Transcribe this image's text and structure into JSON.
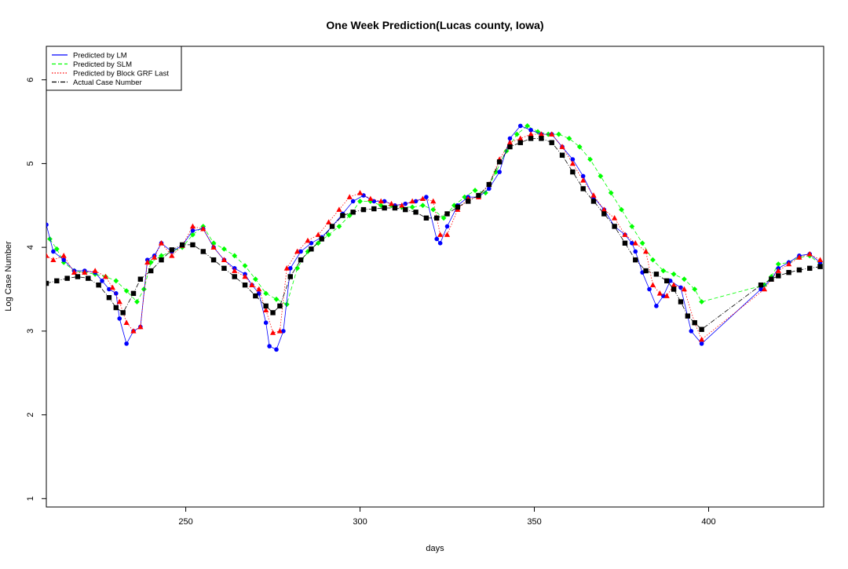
{
  "chart_data": {
    "type": "scatter",
    "title": "One Week Prediction(Lucas county, Iowa)",
    "xlabel": "days",
    "ylabel": "Log Case Number",
    "xlim": [
      210,
      433
    ],
    "ylim": [
      0.9,
      6.4
    ],
    "x_ticks": [
      250,
      300,
      350,
      400
    ],
    "y_ticks": [
      1,
      2,
      3,
      4,
      5,
      6
    ],
    "grid": false,
    "legend_position": "top-left",
    "legend": [
      {
        "label": "Predicted by LM",
        "color": "#0000ff",
        "line": "solid"
      },
      {
        "label": "Predicted by SLM",
        "color": "#00ff00",
        "line": "dashed"
      },
      {
        "label": "Predicted by Block GRF Last",
        "color": "#ff0000",
        "line": "dotted"
      },
      {
        "label": "Actual Case Number",
        "color": "#000000",
        "line": "dashdot"
      }
    ],
    "actual": {
      "name": "Actual Case Number",
      "color": "#000000",
      "marker": "square",
      "x": [
        210,
        213,
        216,
        219,
        222,
        225,
        228,
        230,
        232,
        235,
        237,
        240,
        243,
        246,
        249,
        252,
        255,
        258,
        261,
        264,
        267,
        270,
        273,
        275,
        277,
        280,
        283,
        286,
        289,
        292,
        295,
        298,
        301,
        304,
        307,
        310,
        313,
        316,
        319,
        322,
        325,
        328,
        331,
        334,
        337,
        340,
        343,
        346,
        349,
        352,
        355,
        358,
        361,
        364,
        367,
        370,
        373,
        376,
        379,
        382,
        385,
        388,
        390,
        392,
        394,
        396,
        398,
        415,
        418,
        420,
        423,
        426,
        429,
        432
      ],
      "y": [
        3.57,
        3.6,
        3.63,
        3.65,
        3.63,
        3.55,
        3.4,
        3.28,
        3.22,
        3.45,
        3.62,
        3.72,
        3.85,
        3.97,
        4.03,
        4.03,
        3.95,
        3.85,
        3.75,
        3.65,
        3.55,
        3.42,
        3.3,
        3.22,
        3.3,
        3.65,
        3.85,
        3.98,
        4.1,
        4.25,
        4.38,
        4.42,
        4.45,
        4.46,
        4.47,
        4.47,
        4.45,
        4.42,
        4.35,
        4.35,
        4.4,
        4.48,
        4.55,
        4.62,
        4.75,
        5.02,
        5.2,
        5.25,
        5.3,
        5.3,
        5.25,
        5.1,
        4.9,
        4.7,
        4.55,
        4.4,
        4.25,
        4.05,
        3.85,
        3.72,
        3.68,
        3.6,
        3.5,
        3.35,
        3.18,
        3.1,
        3.02,
        3.55,
        3.62,
        3.66,
        3.7,
        3.73,
        3.75,
        3.77
      ]
    },
    "lm": {
      "name": "Predicted by LM",
      "color": "#0000ff",
      "marker": "circle",
      "x": [
        210,
        212,
        215,
        218,
        221,
        224,
        226,
        228,
        230,
        231,
        233,
        235,
        237,
        239,
        241,
        243,
        246,
        249,
        252,
        255,
        258,
        261,
        264,
        267,
        269,
        271,
        273,
        274,
        276,
        278,
        280,
        283,
        286,
        289,
        292,
        295,
        298,
        301,
        304,
        307,
        310,
        313,
        316,
        319,
        322,
        323,
        325,
        328,
        331,
        334,
        337,
        340,
        343,
        346,
        349,
        352,
        355,
        358,
        361,
        364,
        367,
        370,
        373,
        376,
        378,
        379,
        381,
        383,
        385,
        387,
        389,
        392,
        395,
        398,
        415,
        418,
        420,
        423,
        426,
        429,
        432
      ],
      "y": [
        4.27,
        3.95,
        3.85,
        3.72,
        3.72,
        3.7,
        3.6,
        3.5,
        3.45,
        3.15,
        2.85,
        3.0,
        3.05,
        3.85,
        3.9,
        4.05,
        3.95,
        4.02,
        4.2,
        4.22,
        4.0,
        3.85,
        3.75,
        3.68,
        3.55,
        3.45,
        3.1,
        2.82,
        2.78,
        3.0,
        3.75,
        3.95,
        4.05,
        4.12,
        4.25,
        4.4,
        4.55,
        4.62,
        4.55,
        4.55,
        4.5,
        4.52,
        4.55,
        4.6,
        4.1,
        4.05,
        4.25,
        4.5,
        4.6,
        4.6,
        4.7,
        4.9,
        5.3,
        5.45,
        5.4,
        5.35,
        5.35,
        5.2,
        5.05,
        4.85,
        4.6,
        4.45,
        4.25,
        4.15,
        4.05,
        3.95,
        3.7,
        3.5,
        3.3,
        3.42,
        3.6,
        3.52,
        3.0,
        2.85,
        3.5,
        3.62,
        3.75,
        3.82,
        3.9,
        3.92,
        3.82
      ]
    },
    "slm": {
      "name": "Predicted by SLM",
      "color": "#00ff00",
      "marker": "diamond",
      "x": [
        211,
        213,
        215,
        218,
        221,
        224,
        227,
        230,
        233,
        236,
        238,
        240,
        243,
        246,
        249,
        252,
        255,
        258,
        261,
        264,
        267,
        270,
        273,
        276,
        279,
        282,
        285,
        288,
        291,
        294,
        297,
        300,
        303,
        306,
        309,
        312,
        315,
        318,
        321,
        324,
        327,
        330,
        333,
        336,
        339,
        342,
        345,
        348,
        351,
        354,
        357,
        360,
        363,
        366,
        369,
        372,
        375,
        378,
        381,
        384,
        387,
        390,
        393,
        396,
        398,
        416,
        418,
        420,
        423,
        426,
        429,
        432
      ],
      "y": [
        4.1,
        3.98,
        3.82,
        3.72,
        3.7,
        3.68,
        3.65,
        3.6,
        3.48,
        3.35,
        3.5,
        3.82,
        3.9,
        3.95,
        4.0,
        4.15,
        4.25,
        4.05,
        3.98,
        3.9,
        3.78,
        3.62,
        3.45,
        3.38,
        3.32,
        3.75,
        3.95,
        4.05,
        4.15,
        4.25,
        4.38,
        4.55,
        4.55,
        4.5,
        4.5,
        4.48,
        4.48,
        4.5,
        4.45,
        4.35,
        4.5,
        4.6,
        4.68,
        4.65,
        4.9,
        5.15,
        5.35,
        5.45,
        5.38,
        5.35,
        5.35,
        5.3,
        5.2,
        5.05,
        4.85,
        4.65,
        4.45,
        4.25,
        4.05,
        3.85,
        3.72,
        3.68,
        3.62,
        3.5,
        3.35,
        3.55,
        3.65,
        3.8,
        3.82,
        3.88,
        3.9,
        3.8
      ]
    },
    "grf": {
      "name": "Predicted by Block GRF Last",
      "color": "#ff0000",
      "marker": "triangle",
      "x": [
        210,
        212,
        215,
        218,
        221,
        224,
        227,
        229,
        231,
        233,
        235,
        237,
        239,
        241,
        243,
        246,
        249,
        252,
        255,
        258,
        261,
        264,
        267,
        269,
        271,
        273,
        275,
        277,
        279,
        282,
        285,
        288,
        291,
        294,
        297,
        300,
        303,
        306,
        309,
        312,
        315,
        318,
        321,
        323,
        325,
        328,
        331,
        334,
        337,
        340,
        343,
        346,
        349,
        352,
        355,
        358,
        361,
        364,
        367,
        370,
        373,
        376,
        379,
        382,
        384,
        386,
        388,
        390,
        393,
        396,
        398,
        416,
        418,
        420,
        423,
        426,
        429,
        432
      ],
      "y": [
        3.9,
        3.85,
        3.9,
        3.7,
        3.7,
        3.72,
        3.65,
        3.52,
        3.35,
        3.1,
        3.0,
        3.05,
        3.82,
        3.88,
        4.05,
        3.9,
        4.02,
        4.25,
        4.22,
        4.0,
        3.85,
        3.72,
        3.65,
        3.55,
        3.5,
        3.25,
        2.98,
        3.0,
        3.75,
        3.95,
        4.08,
        4.15,
        4.3,
        4.45,
        4.6,
        4.65,
        4.58,
        4.55,
        4.52,
        4.5,
        4.55,
        4.58,
        4.55,
        4.15,
        4.15,
        4.45,
        4.58,
        4.6,
        4.75,
        5.05,
        5.25,
        5.3,
        5.35,
        5.35,
        5.35,
        5.2,
        5.0,
        4.8,
        4.62,
        4.45,
        4.35,
        4.15,
        4.05,
        3.95,
        3.55,
        3.45,
        3.42,
        3.55,
        3.5,
        3.1,
        2.9,
        3.5,
        3.62,
        3.72,
        3.8,
        3.88,
        3.92,
        3.85
      ]
    }
  }
}
